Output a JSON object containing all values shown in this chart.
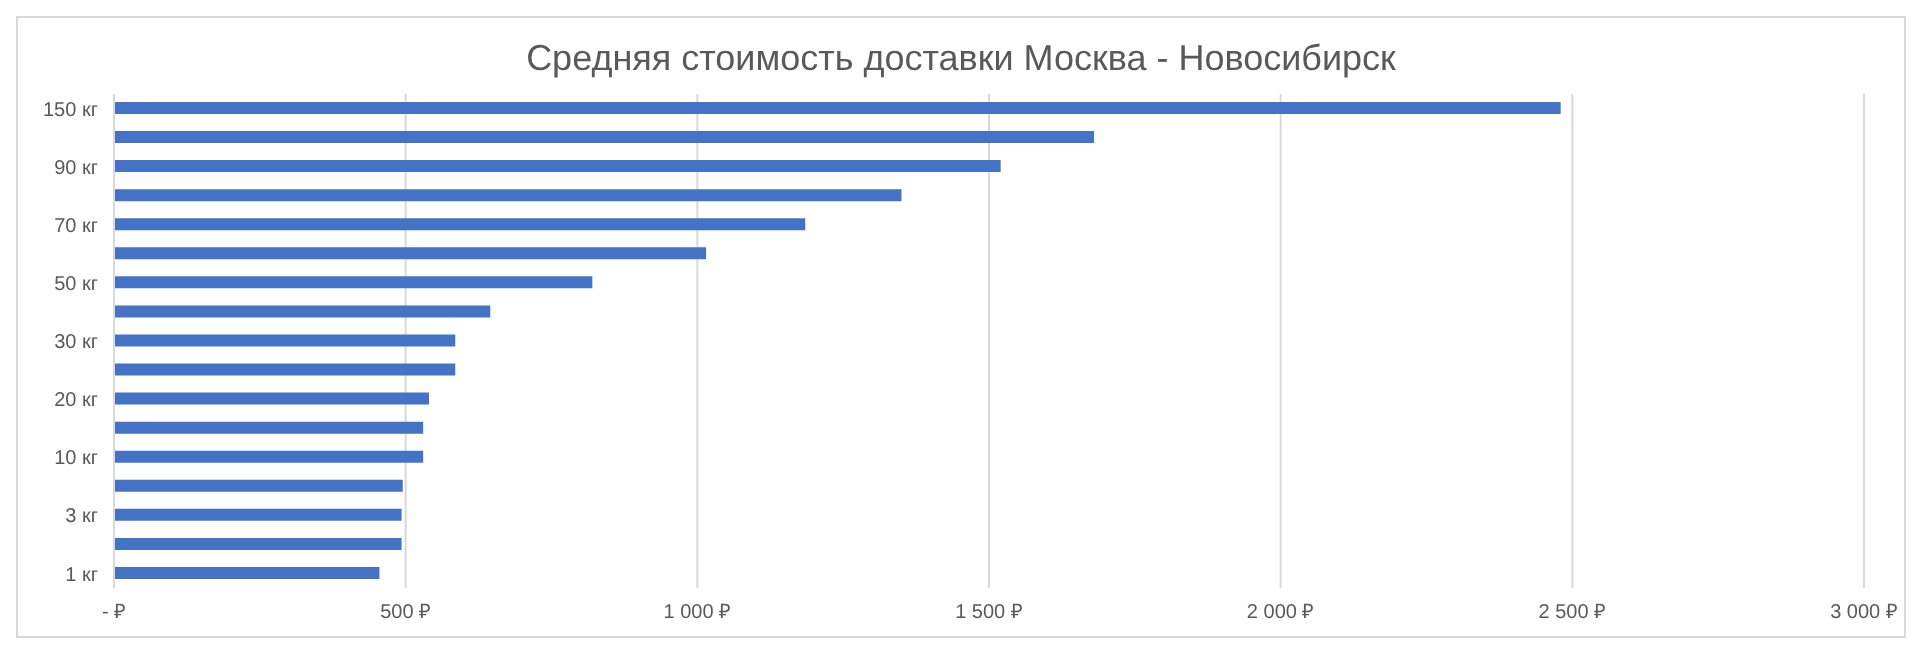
{
  "chart_data": {
    "type": "bar",
    "orientation": "horizontal",
    "title": "Средняя стоимость доставки Москва - Новосибирск",
    "categories": [
      "150 кг",
      null,
      "90 кг",
      null,
      "70 кг",
      null,
      "50 кг",
      null,
      "30 кг",
      null,
      "20 кг",
      null,
      "10 кг",
      null,
      "3 кг",
      null,
      "1 кг"
    ],
    "values": [
      2480,
      1680,
      1520,
      1350,
      1185,
      1015,
      820,
      645,
      585,
      585,
      540,
      530,
      530,
      495,
      493,
      493,
      455
    ],
    "color": "#4472c4",
    "xlim": [
      0,
      3000
    ],
    "xticks": [
      {
        "value": 0,
        "label": "-  ₽"
      },
      {
        "value": 500,
        "label": "500 ₽"
      },
      {
        "value": 1000,
        "label": "1 000 ₽"
      },
      {
        "value": 1500,
        "label": "1 500 ₽"
      },
      {
        "value": 2000,
        "label": "2 000 ₽"
      },
      {
        "value": 2500,
        "label": "2 500 ₽"
      },
      {
        "value": 3000,
        "label": "3 000 ₽"
      }
    ],
    "grid": "x"
  }
}
